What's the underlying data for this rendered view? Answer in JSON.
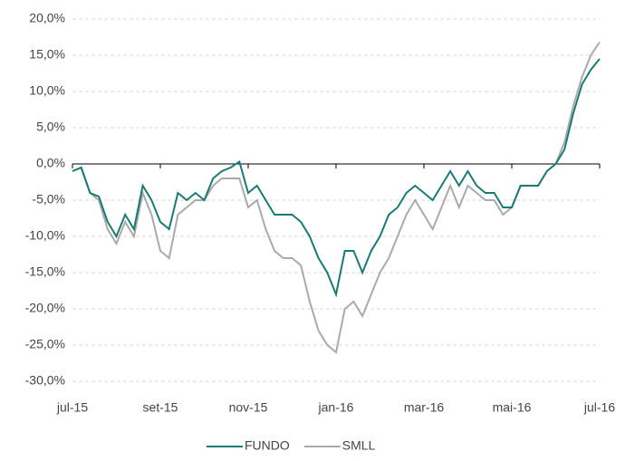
{
  "chart_data": {
    "type": "line",
    "categories": [
      "jul-15",
      null,
      null,
      null,
      null,
      null,
      null,
      null,
      null,
      null,
      "set-15",
      null,
      null,
      null,
      null,
      null,
      null,
      null,
      null,
      null,
      "nov-15",
      null,
      null,
      null,
      null,
      null,
      null,
      null,
      null,
      null,
      "jan-16",
      null,
      null,
      null,
      null,
      null,
      null,
      null,
      null,
      null,
      "mar-16",
      null,
      null,
      null,
      null,
      null,
      null,
      null,
      null,
      null,
      "mai-16",
      null,
      null,
      null,
      null,
      null,
      null,
      null,
      null,
      null,
      "jul-16"
    ],
    "series": [
      {
        "name": "FUNDO",
        "color": "#1a7a74",
        "values": [
          -1,
          -0.5,
          -4,
          -4.5,
          -8,
          -10,
          -7,
          -9,
          -3,
          -5,
          -8,
          -9,
          -4,
          -5,
          -4,
          -5,
          -2,
          -1,
          -0.5,
          0.3,
          -4,
          -3,
          -5,
          -7,
          -7,
          -7,
          -8,
          -10,
          -13,
          -15,
          -18,
          -12,
          -12,
          -15,
          -12,
          -10,
          -7,
          -6,
          -4,
          -3,
          -4,
          -5,
          -3,
          -1,
          -3,
          -1,
          -3,
          -4,
          -4,
          -6,
          -6,
          -3,
          -3,
          -3,
          -1,
          0,
          2,
          7,
          11,
          13,
          14.5
        ]
      },
      {
        "name": "SMLL",
        "color": "#aaaaaa",
        "values": [
          -1,
          -0.5,
          -4,
          -5,
          -9,
          -11,
          -8,
          -10,
          -4,
          -7,
          -12,
          -13,
          -7,
          -6,
          -5,
          -5,
          -3,
          -2,
          -2,
          -2,
          -6,
          -5,
          -9,
          -12,
          -13,
          -13,
          -14,
          -19,
          -23,
          -25,
          -26,
          -20,
          -19,
          -21,
          -18,
          -15,
          -13,
          -10,
          -7,
          -5,
          -7,
          -9,
          -6,
          -3,
          -6,
          -3,
          -4,
          -5,
          -5,
          -7,
          -6,
          -3,
          -3,
          -3,
          -1,
          0,
          3,
          8,
          12,
          15,
          16.8
        ]
      }
    ],
    "ylim": [
      -30,
      20
    ],
    "yticks": [
      {
        "value": -30,
        "label": "-30,0%"
      },
      {
        "value": -25,
        "label": "-25,0%"
      },
      {
        "value": -20,
        "label": "-20,0%"
      },
      {
        "value": -15,
        "label": "-15,0%"
      },
      {
        "value": -10,
        "label": "-10,0%"
      },
      {
        "value": -5,
        "label": "-5,0%"
      },
      {
        "value": 0,
        "label": "0,0%"
      },
      {
        "value": 5,
        "label": "5,0%"
      },
      {
        "value": 10,
        "label": "10,0%"
      },
      {
        "value": 15,
        "label": "15,0%"
      },
      {
        "value": 20,
        "label": "20,0%"
      }
    ],
    "grid": true,
    "legend": "bottom"
  }
}
